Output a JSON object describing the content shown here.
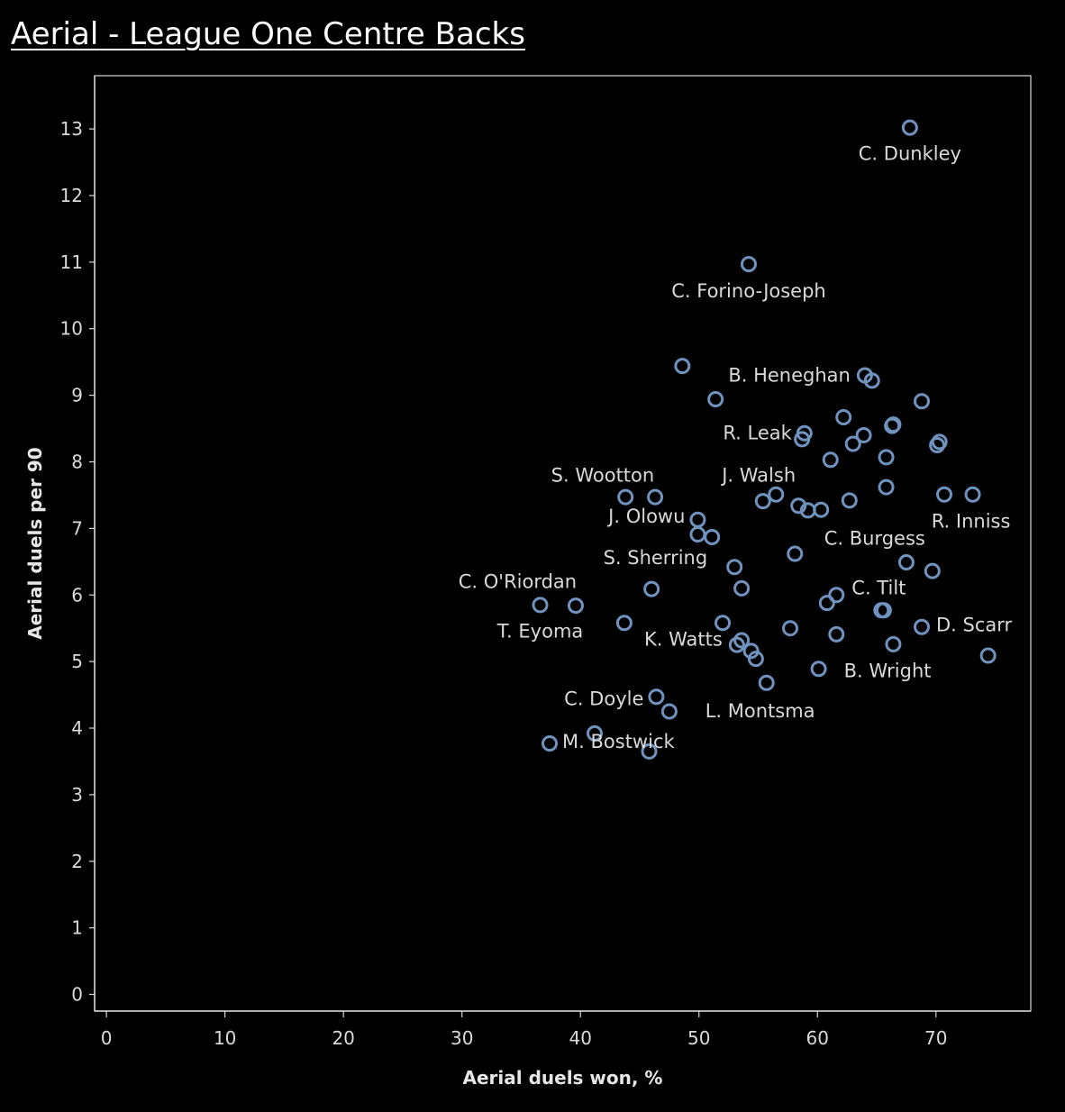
{
  "page": {
    "title": "Aerial - League One Centre Backs"
  },
  "colors": {
    "background": "#000000",
    "marker": "#6f93be",
    "axis": "#d9d9d9",
    "text": "#d9d9d9"
  },
  "chart_data": {
    "type": "scatter",
    "title": "Aerial - League One Centre Backs",
    "xlabel": "Aerial duels won, %",
    "ylabel": "Aerial duels per 90",
    "xlim": [
      -1,
      78
    ],
    "ylim": [
      -0.25,
      13.8
    ],
    "xticks": [
      0,
      10,
      20,
      30,
      40,
      50,
      60,
      70
    ],
    "yticks": [
      0,
      1,
      2,
      3,
      4,
      5,
      6,
      7,
      8,
      9,
      10,
      11,
      12,
      13
    ],
    "grid": false,
    "legend": "none",
    "marker": "hollow-circle",
    "points": [
      {
        "x": 67.8,
        "y": 13.02,
        "label": "C. Dunkley"
      },
      {
        "x": 54.2,
        "y": 10.97,
        "label": "C. Forino-Joseph"
      },
      {
        "x": 48.6,
        "y": 9.44
      },
      {
        "x": 64.0,
        "y": 9.3,
        "label": "B. Heneghan"
      },
      {
        "x": 64.6,
        "y": 9.22
      },
      {
        "x": 51.4,
        "y": 8.94
      },
      {
        "x": 68.8,
        "y": 8.91
      },
      {
        "x": 62.2,
        "y": 8.67
      },
      {
        "x": 66.3,
        "y": 8.54
      },
      {
        "x": 66.4,
        "y": 8.56
      },
      {
        "x": 58.9,
        "y": 8.43,
        "label": "R. Leak"
      },
      {
        "x": 58.7,
        "y": 8.34
      },
      {
        "x": 63.9,
        "y": 8.4
      },
      {
        "x": 63.0,
        "y": 8.27
      },
      {
        "x": 70.3,
        "y": 8.3
      },
      {
        "x": 70.1,
        "y": 8.25
      },
      {
        "x": 61.1,
        "y": 8.03
      },
      {
        "x": 65.8,
        "y": 8.07
      },
      {
        "x": 65.8,
        "y": 7.62
      },
      {
        "x": 43.8,
        "y": 7.47,
        "label": "S. Wootton"
      },
      {
        "x": 46.3,
        "y": 7.47
      },
      {
        "x": 56.5,
        "y": 7.51,
        "label": "J. Walsh"
      },
      {
        "x": 55.4,
        "y": 7.41
      },
      {
        "x": 70.7,
        "y": 7.51
      },
      {
        "x": 73.1,
        "y": 7.51,
        "label": "R. Inniss"
      },
      {
        "x": 58.4,
        "y": 7.34
      },
      {
        "x": 59.2,
        "y": 7.27
      },
      {
        "x": 60.3,
        "y": 7.28
      },
      {
        "x": 62.7,
        "y": 7.42,
        "label": "C. Burgess"
      },
      {
        "x": 49.9,
        "y": 7.13,
        "label": "J. Olowu"
      },
      {
        "x": 49.9,
        "y": 6.91
      },
      {
        "x": 51.1,
        "y": 6.87
      },
      {
        "x": 58.1,
        "y": 6.62
      },
      {
        "x": 53.0,
        "y": 6.42,
        "label": "S. Sherring"
      },
      {
        "x": 67.5,
        "y": 6.49
      },
      {
        "x": 69.7,
        "y": 6.36
      },
      {
        "x": 46.0,
        "y": 6.09,
        "label": "C. O'Riordan"
      },
      {
        "x": 53.6,
        "y": 6.1
      },
      {
        "x": 61.6,
        "y": 6.0,
        "label": "C. Tilt"
      },
      {
        "x": 60.8,
        "y": 5.88
      },
      {
        "x": 36.6,
        "y": 5.85,
        "label": "T. Eyoma"
      },
      {
        "x": 39.6,
        "y": 5.84
      },
      {
        "x": 65.4,
        "y": 5.77
      },
      {
        "x": 65.6,
        "y": 5.77
      },
      {
        "x": 43.7,
        "y": 5.58
      },
      {
        "x": 52.0,
        "y": 5.58
      },
      {
        "x": 57.7,
        "y": 5.5
      },
      {
        "x": 61.6,
        "y": 5.41
      },
      {
        "x": 68.8,
        "y": 5.52,
        "label": "D. Scarr"
      },
      {
        "x": 53.2,
        "y": 5.25,
        "label": "K. Watts"
      },
      {
        "x": 53.6,
        "y": 5.32
      },
      {
        "x": 54.4,
        "y": 5.16
      },
      {
        "x": 54.8,
        "y": 5.04
      },
      {
        "x": 66.4,
        "y": 5.26
      },
      {
        "x": 74.4,
        "y": 5.09
      },
      {
        "x": 60.1,
        "y": 4.89,
        "label": "B. Wright"
      },
      {
        "x": 55.7,
        "y": 4.68,
        "label": "L. Montsma"
      },
      {
        "x": 46.4,
        "y": 4.47,
        "label": "C. Doyle"
      },
      {
        "x": 47.5,
        "y": 4.25
      },
      {
        "x": 41.2,
        "y": 3.92
      },
      {
        "x": 37.4,
        "y": 3.77,
        "label": "M. Bostwick"
      },
      {
        "x": 45.8,
        "y": 3.65
      }
    ]
  }
}
